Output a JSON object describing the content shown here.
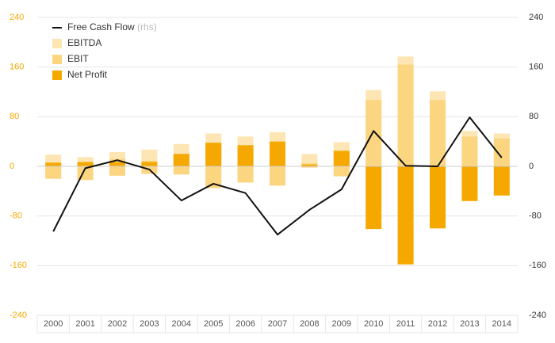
{
  "chart_data": {
    "type": "bar",
    "categories": [
      "2000",
      "2001",
      "2002",
      "2003",
      "2004",
      "2005",
      "2006",
      "2007",
      "2008",
      "2009",
      "2010",
      "2011",
      "2012",
      "2013",
      "2014"
    ],
    "series": [
      {
        "name": "EBITDA",
        "kind": "bar",
        "axis": "left",
        "color": "#fde6b4",
        "pos": [
          19,
          15,
          23,
          27,
          36,
          53,
          48,
          55,
          20,
          39,
          123,
          177,
          121,
          57,
          53
        ],
        "neg": [
          -20,
          -22,
          -15,
          -12,
          -13,
          -35,
          -26,
          -31,
          -2,
          -16,
          -2,
          -2,
          -2,
          -2,
          -2
        ]
      },
      {
        "name": "EBIT",
        "kind": "bar",
        "axis": "left",
        "color": "#fcd581",
        "pos": [
          6,
          7,
          12,
          9,
          20,
          38,
          34,
          40,
          5,
          25,
          107,
          164,
          107,
          48,
          45
        ],
        "neg": [
          -20,
          -22,
          -15,
          -12,
          -13,
          -35,
          -26,
          -31,
          -2,
          -16,
          -2,
          -2,
          -2,
          -2,
          -2
        ]
      },
      {
        "name": "Net Profit",
        "kind": "bar",
        "axis": "left",
        "color": "#f5a800",
        "pos": [
          6,
          7,
          7,
          7,
          20,
          38,
          34,
          40,
          3,
          25,
          0,
          0,
          0,
          0,
          0
        ],
        "neg": [
          0,
          0,
          0,
          0,
          0,
          0,
          0,
          0,
          0,
          0,
          -101,
          -158,
          -100,
          -56,
          -47
        ]
      },
      {
        "name": "Free Cash Flow",
        "name_note": "(rhs)",
        "kind": "line",
        "axis": "right",
        "color": "#111111",
        "values": [
          -105,
          -3,
          10,
          -5,
          -55,
          -28,
          -43,
          -110,
          -70,
          -37,
          57,
          1,
          0,
          79,
          14
        ]
      }
    ],
    "ylim": [
      -240,
      240
    ],
    "y_ticks": [
      -240,
      -160,
      -80,
      0,
      80,
      160,
      240
    ],
    "y2lim": [
      -240,
      240
    ],
    "y2_ticks": [
      -240,
      -160,
      -80,
      0,
      80,
      160,
      240
    ],
    "grid": true,
    "legend_position": "top-left",
    "axis_colors": {
      "left_ticks": "#f5a800",
      "right_ticks": "#333333",
      "x_ticks": "#555555",
      "grid": "#e6e6e6",
      "zero_line": "#cccccc"
    }
  }
}
